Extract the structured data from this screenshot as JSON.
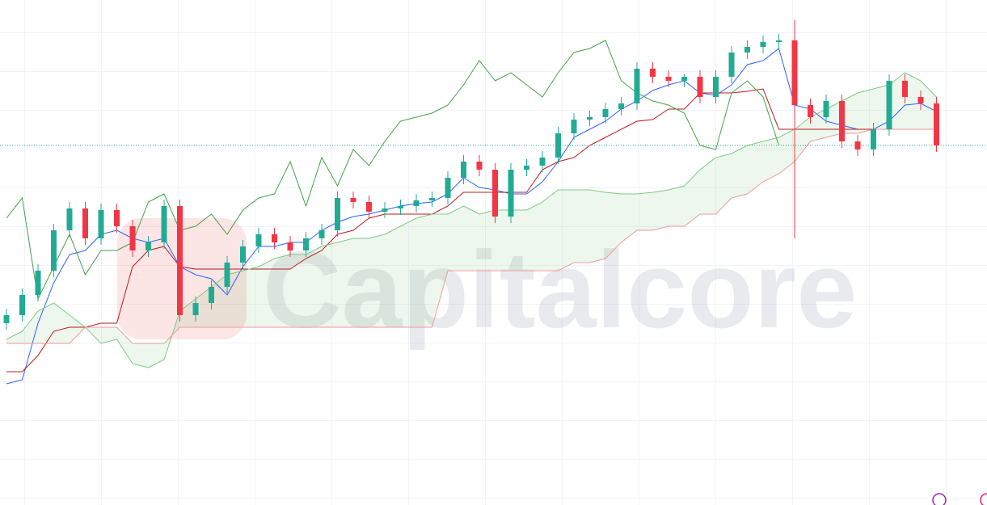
{
  "chart_data": {
    "type": "candlestick",
    "watermark": "Capitalcore",
    "ylim": [
      0,
      625
    ],
    "up_color": "#22ab94",
    "down_color": "#f23645",
    "last_price": 445,
    "last_price_color": "#22ab94",
    "open": [
      225,
      235,
      260,
      290,
      340,
      367,
      330,
      365,
      345,
      315,
      325,
      370,
      235,
      250,
      270,
      300,
      320,
      335,
      325,
      315,
      330,
      340,
      380,
      375,
      363,
      367,
      370,
      377,
      380,
      405,
      425,
      415,
      357,
      415,
      420,
      430,
      460,
      477,
      480,
      490,
      497,
      540,
      530,
      525,
      530,
      505,
      530,
      560,
      567,
      573,
      575,
      495,
      480,
      500,
      450,
      440,
      465,
      525,
      505,
      497
    ],
    "high": [
      243,
      268,
      298,
      348,
      375,
      375,
      373,
      373,
      353,
      333,
      378,
      378,
      258,
      278,
      308,
      328,
      343,
      343,
      333,
      338,
      348,
      388,
      388,
      383,
      375,
      378,
      385,
      388,
      413,
      433,
      433,
      423,
      423,
      428,
      438,
      468,
      485,
      488,
      498,
      505,
      548,
      548,
      538,
      533,
      538,
      538,
      568,
      575,
      581,
      583,
      600,
      503,
      508,
      508,
      458,
      473,
      533,
      533,
      513,
      505
    ],
    "low": [
      217,
      227,
      252,
      282,
      332,
      322,
      322,
      337,
      307,
      307,
      317,
      227,
      227,
      242,
      262,
      292,
      312,
      317,
      307,
      307,
      322,
      332,
      367,
      355,
      355,
      359,
      362,
      369,
      372,
      397,
      407,
      349,
      349,
      407,
      412,
      422,
      452,
      469,
      472,
      482,
      489,
      522,
      517,
      517,
      497,
      497,
      522,
      552,
      559,
      565,
      330,
      472,
      472,
      442,
      432,
      432,
      457,
      497,
      489,
      437
    ],
    "close": [
      235,
      260,
      290,
      340,
      367,
      330,
      365,
      345,
      315,
      325,
      370,
      235,
      250,
      270,
      300,
      320,
      335,
      325,
      315,
      330,
      340,
      380,
      375,
      363,
      367,
      370,
      377,
      380,
      405,
      425,
      415,
      357,
      415,
      420,
      430,
      460,
      477,
      480,
      490,
      497,
      540,
      530,
      525,
      530,
      505,
      530,
      560,
      567,
      573,
      575,
      495,
      480,
      500,
      450,
      440,
      465,
      525,
      505,
      497,
      445
    ],
    "series": [
      {
        "color": "#2962ff",
        "values": [
          150,
          155,
          225,
          275,
          310,
          315,
          335,
          340,
          330,
          325,
          330,
          295,
          285,
          280,
          260,
          295,
          320,
          320,
          325,
          325,
          340,
          350,
          357,
          360,
          365,
          370,
          373,
          375,
          385,
          405,
          393,
          390,
          385,
          385,
          400,
          425,
          455,
          465,
          475,
          490,
          500,
          513,
          520,
          525,
          510,
          507,
          520,
          545,
          550,
          565,
          495,
          490,
          475,
          470,
          465,
          465,
          475,
          495,
          497,
          487
        ]
      },
      {
        "color": "#b71c1c",
        "values": [
          165,
          165,
          185,
          215,
          220,
          220,
          225,
          225,
          295,
          315,
          320,
          295,
          292,
          292,
          292,
          292,
          292,
          292,
          292,
          305,
          315,
          335,
          340,
          355,
          360,
          360,
          360,
          360,
          370,
          387,
          387,
          387,
          387,
          387,
          415,
          425,
          430,
          445,
          455,
          465,
          475,
          477,
          490,
          490,
          510,
          510,
          510,
          512,
          515,
          465,
          465,
          465,
          465,
          465,
          465,
          465,
          465,
          465,
          465,
          465
        ]
      },
      {
        "color": "#43a047",
        "values": [
          355,
          380,
          255,
          295,
          335,
          285,
          315,
          315,
          325,
          375,
          385,
          340,
          345,
          360,
          335,
          365,
          380,
          385,
          425,
          370,
          430,
          395,
          440,
          420,
          450,
          475,
          480,
          485,
          495,
          520,
          550,
          525,
          535,
          520,
          505,
          535,
          560,
          565,
          575,
          525,
          510,
          500,
          495,
          485,
          445,
          440,
          510,
          525,
          505,
          445,
          null,
          null,
          null,
          null,
          null,
          null,
          null,
          null,
          null,
          null
        ]
      },
      {
        "color": "#81c784",
        "values": [
          205,
          215,
          240,
          250,
          235,
          220,
          200,
          205,
          175,
          170,
          180,
          240,
          255,
          270,
          285,
          290,
          295,
          305,
          310,
          310,
          320,
          325,
          330,
          330,
          335,
          345,
          355,
          360,
          360,
          370,
          360,
          365,
          365,
          365,
          375,
          390,
          390,
          390,
          387,
          385,
          385,
          387,
          390,
          395,
          415,
          430,
          435,
          445,
          450,
          455,
          465,
          480,
          490,
          500,
          510,
          515,
          520,
          535,
          525,
          505
        ]
      },
      {
        "color": "#ef9a9a",
        "values": [
          200,
          200,
          200,
          200,
          200,
          220,
          220,
          220,
          200,
          200,
          200,
          220,
          220,
          220,
          220,
          220,
          220,
          220,
          220,
          220,
          220,
          220,
          220,
          220,
          220,
          220,
          220,
          220,
          290,
          290,
          290,
          290,
          290,
          290,
          290,
          290,
          300,
          300,
          305,
          325,
          340,
          340,
          345,
          345,
          360,
          360,
          380,
          385,
          400,
          410,
          425,
          450,
          455,
          460,
          460,
          465,
          465,
          465,
          465,
          465
        ]
      }
    ]
  }
}
